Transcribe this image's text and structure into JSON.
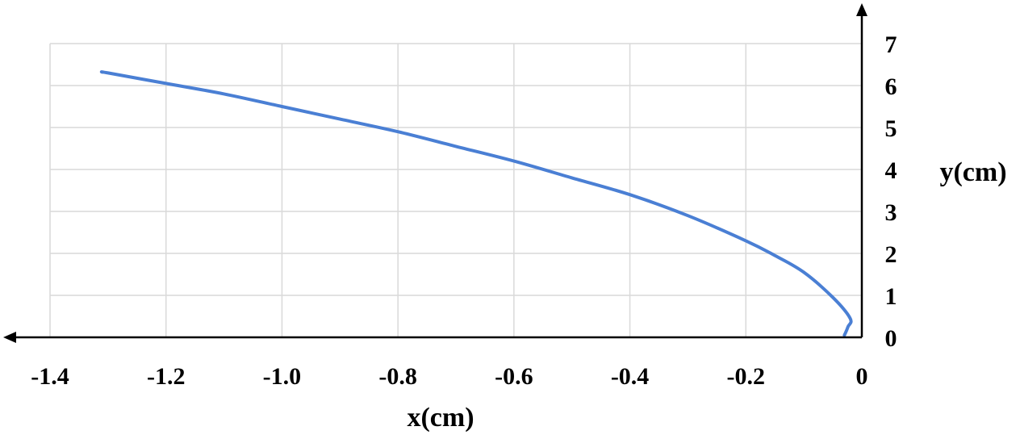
{
  "chart_data": {
    "type": "line",
    "xlabel": "x(cm)",
    "ylabel": "y(cm)",
    "xlim": [
      -1.4,
      0
    ],
    "ylim": [
      0,
      7
    ],
    "x_ticks": [
      "-1.4",
      "-1.2",
      "-1.0",
      "-0.8",
      "-0.6",
      "-0.4",
      "-0.2",
      "0"
    ],
    "y_ticks": [
      "0",
      "1",
      "2",
      "3",
      "4",
      "5",
      "6",
      "7"
    ],
    "grid": true,
    "series": [
      {
        "color": "#4a7fd4",
        "x": [
          -0.03,
          -0.024,
          -0.02,
          -0.05,
          -0.1,
          -0.15,
          -0.2,
          -0.3,
          -0.4,
          -0.5,
          -0.6,
          -0.7,
          -0.8,
          -0.9,
          -1.0,
          -1.1,
          -1.2,
          -1.3,
          -1.31
        ],
        "y": [
          0.05,
          0.25,
          0.45,
          0.95,
          1.55,
          1.95,
          2.3,
          2.9,
          3.4,
          3.8,
          4.2,
          4.55,
          4.9,
          5.2,
          5.5,
          5.8,
          6.05,
          6.3,
          6.32
        ]
      }
    ]
  }
}
